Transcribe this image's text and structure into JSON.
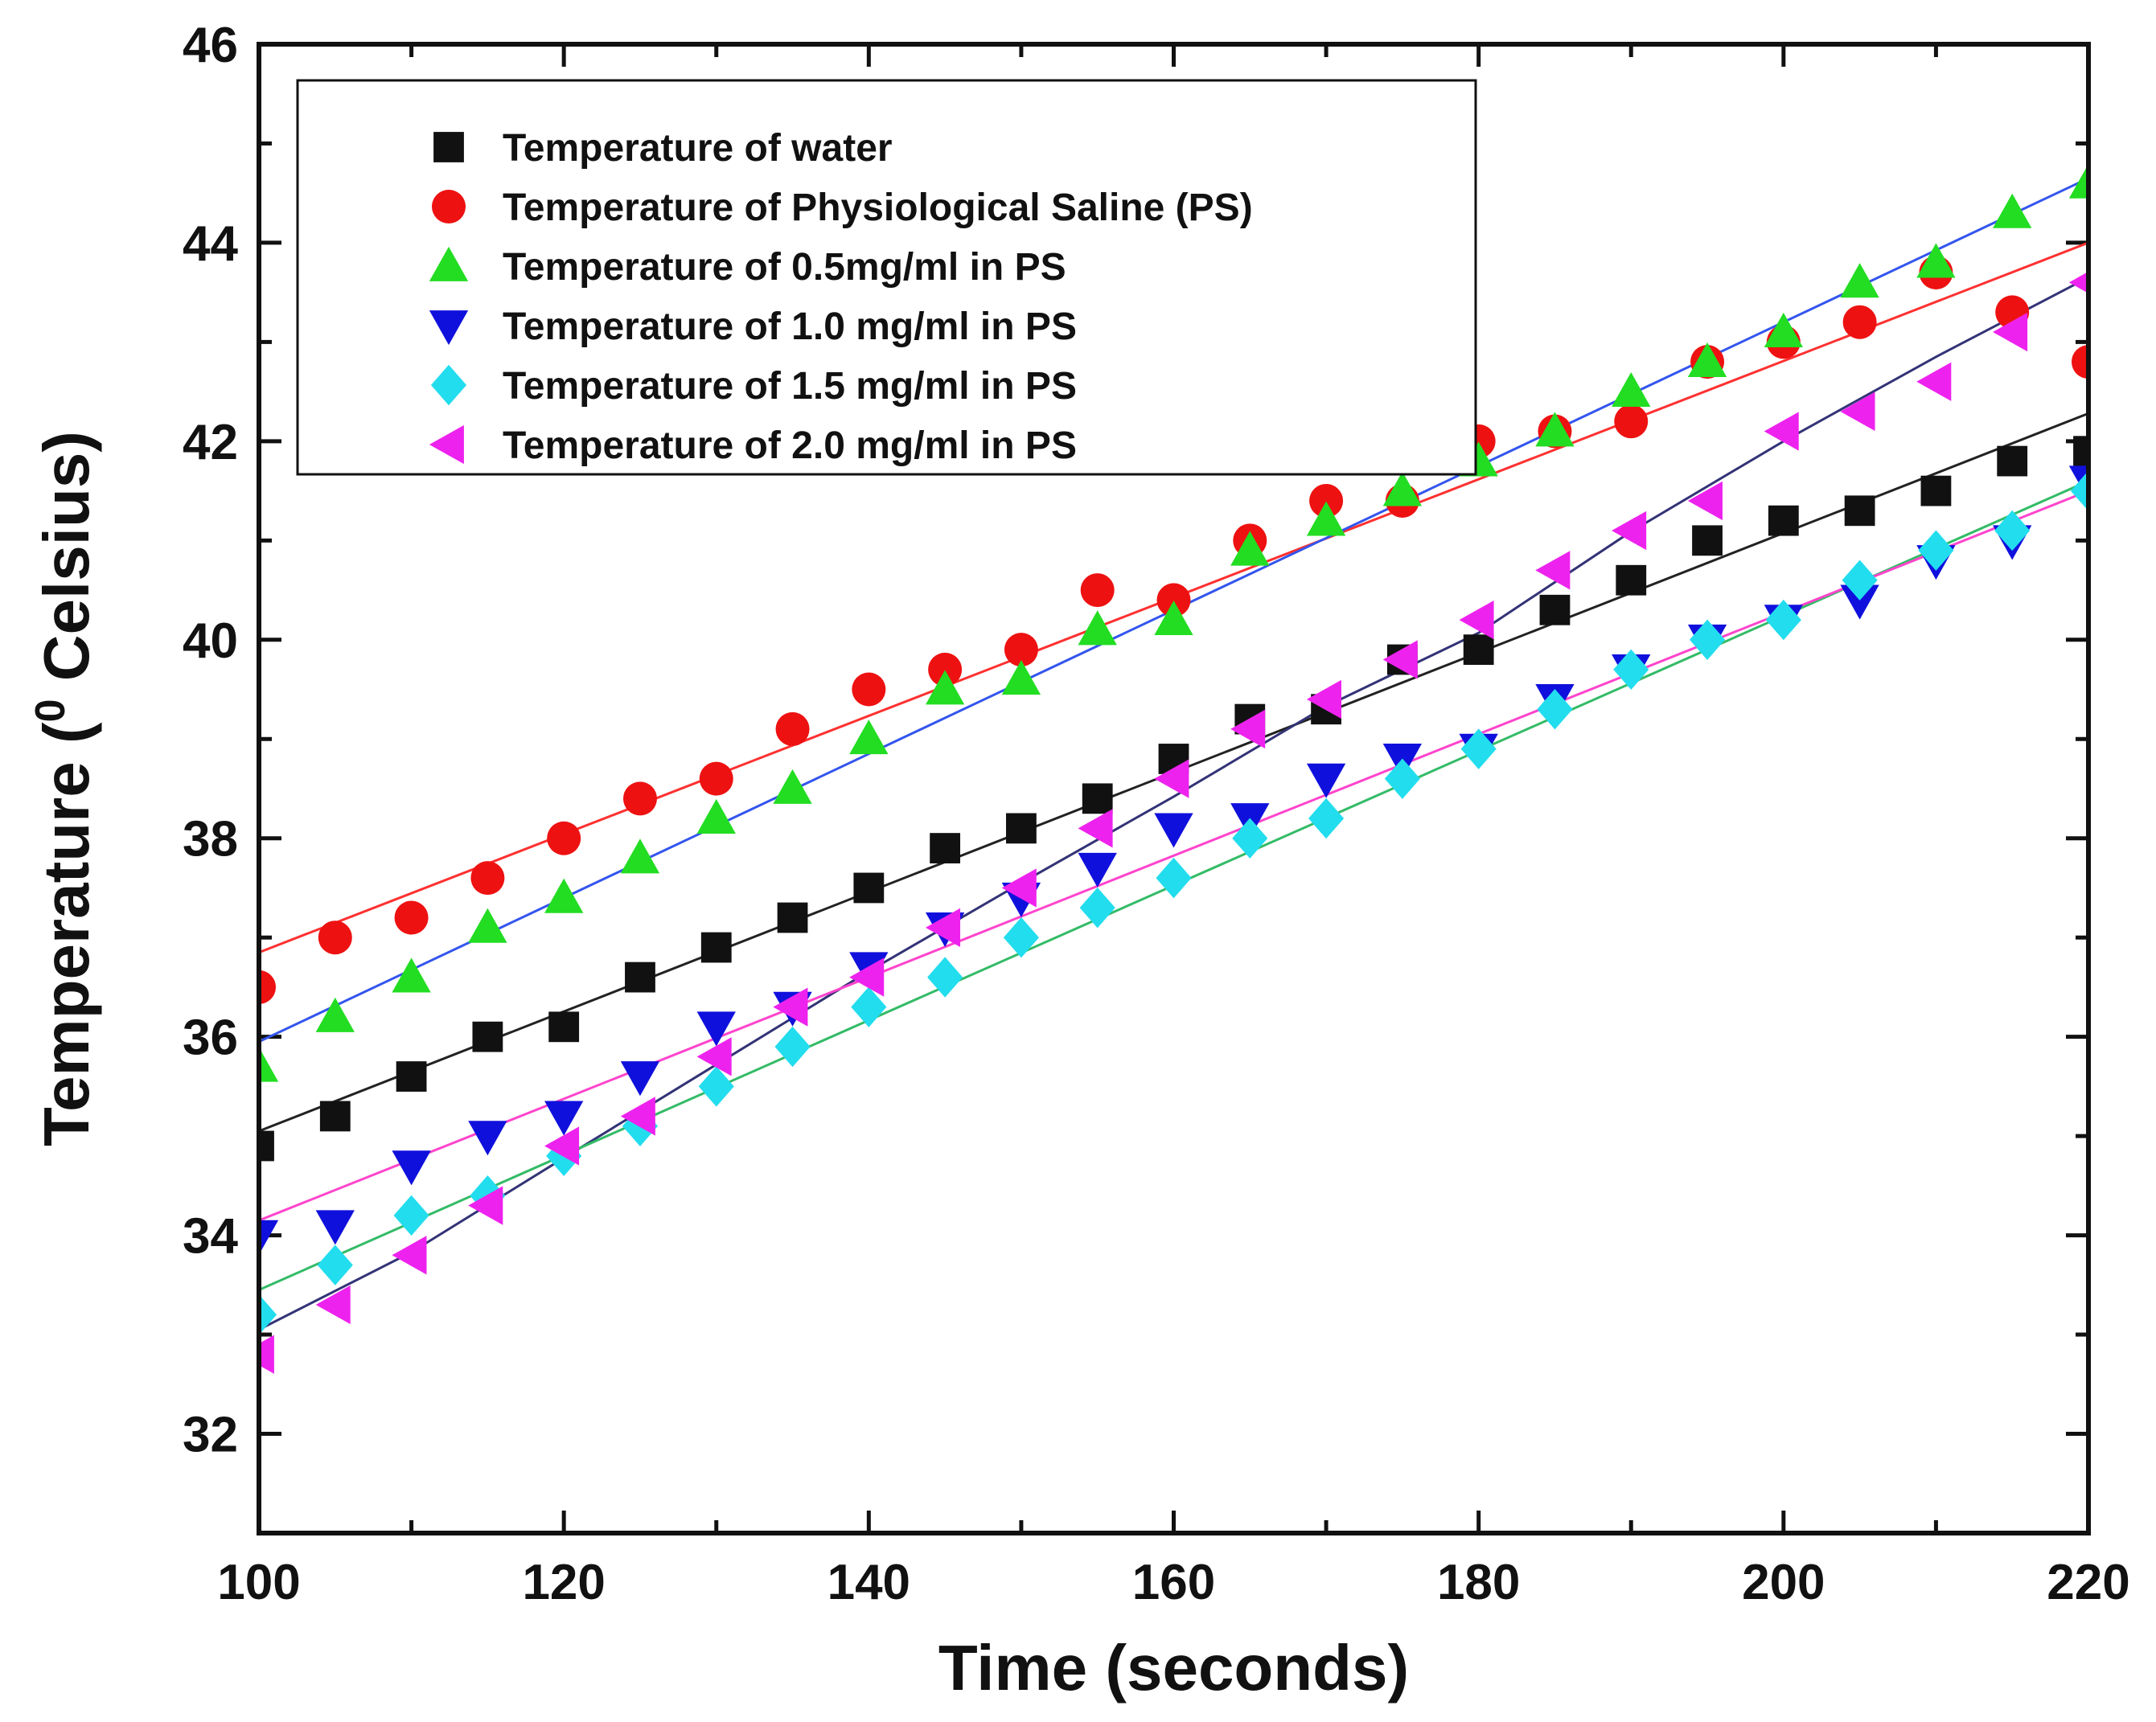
{
  "chart_data": {
    "type": "scatter",
    "xlabel": "Time (seconds)",
    "ylabel_parts": {
      "prefix": "Temperature (",
      "superscript": "0",
      "suffix": " Celsius)"
    },
    "xlim": [
      100,
      220
    ],
    "ylim": [
      31,
      46
    ],
    "xticks": [
      100,
      120,
      140,
      160,
      180,
      200,
      220
    ],
    "yticks": [
      32,
      34,
      36,
      38,
      40,
      42,
      44,
      46
    ],
    "legend_position": "top-left",
    "x": [
      100,
      105,
      110,
      115,
      120,
      125,
      130,
      135,
      140,
      145,
      150,
      155,
      160,
      165,
      170,
      175,
      180,
      185,
      190,
      195,
      200,
      205,
      210,
      215,
      220
    ],
    "series": [
      {
        "name": "Temperature of water",
        "marker": "square",
        "color": "#111111",
        "line_color": "#222222",
        "values": [
          34.9,
          35.2,
          35.6,
          36.0,
          36.1,
          36.6,
          36.9,
          37.2,
          37.5,
          37.9,
          38.1,
          38.4,
          38.8,
          39.2,
          39.3,
          39.8,
          39.9,
          40.3,
          40.6,
          41.0,
          41.2,
          41.3,
          41.5,
          41.8,
          41.9
        ],
        "fit": [
          [
            100,
            35.05
          ],
          [
            220,
            42.28
          ]
        ]
      },
      {
        "name": "Temperature of Physiological Saline (PS)",
        "marker": "circle",
        "color": "#ee1111",
        "line_color": "#ff3030",
        "values": [
          36.5,
          37.0,
          37.2,
          37.6,
          38.0,
          38.4,
          38.6,
          39.1,
          39.5,
          39.7,
          39.9,
          40.5,
          40.4,
          41.0,
          41.4,
          41.4,
          42.0,
          42.1,
          42.2,
          42.8,
          43.0,
          43.2,
          43.7,
          43.3,
          42.8
        ],
        "fit": [
          [
            100,
            36.85
          ],
          [
            220,
            44.0
          ]
        ]
      },
      {
        "name": "Temperature of 0.5mg/ml in PS",
        "marker": "triangle-up",
        "color": "#22dd22",
        "line_color": "#3355ee",
        "values": [
          35.7,
          36.2,
          36.6,
          37.1,
          37.4,
          37.8,
          38.2,
          38.5,
          39.0,
          39.5,
          39.6,
          40.1,
          40.2,
          40.9,
          41.2,
          41.5,
          41.8,
          42.1,
          42.5,
          42.8,
          43.1,
          43.6,
          43.8,
          44.3,
          44.6
        ],
        "fit": [
          [
            100,
            35.95
          ],
          [
            220,
            44.65
          ]
        ]
      },
      {
        "name": "Temperature of 1.0 mg/ml in PS",
        "marker": "triangle-down",
        "color": "#1010dd",
        "line_color": "#333377",
        "values": [
          34.0,
          34.1,
          34.7,
          35.0,
          35.2,
          35.6,
          36.1,
          36.3,
          36.7,
          37.1,
          37.4,
          37.7,
          38.1,
          38.2,
          38.6,
          38.8,
          38.9,
          39.4,
          39.7,
          40.0,
          40.2,
          40.4,
          40.8,
          41.0,
          41.6
        ],
        "fit": [
          [
            100,
            33.05
          ],
          [
            110,
            33.83
          ],
          [
            120,
            34.78
          ],
          [
            130,
            35.72
          ],
          [
            140,
            36.66
          ],
          [
            150,
            37.55
          ],
          [
            160,
            38.42
          ],
          [
            170,
            39.33
          ],
          [
            180,
            40.07
          ],
          [
            190,
            41.09
          ],
          [
            200,
            42.0
          ],
          [
            210,
            42.85
          ],
          [
            220,
            43.65
          ]
        ]
      },
      {
        "name": "Temperature of 1.5 mg/ml in PS",
        "marker": "diamond",
        "color": "#22ddee",
        "line_color": "#33bb66",
        "values": [
          33.2,
          33.7,
          34.2,
          34.4,
          34.8,
          35.1,
          35.5,
          35.9,
          36.3,
          36.6,
          37.0,
          37.3,
          37.6,
          38.0,
          38.2,
          38.6,
          38.9,
          39.3,
          39.7,
          40.0,
          40.2,
          40.6,
          40.9,
          41.1,
          41.5
        ],
        "fit": [
          [
            100,
            33.45
          ],
          [
            220,
            41.6
          ]
        ]
      },
      {
        "name": "Temperature of 2.0 mg/ml in PS",
        "marker": "triangle-left",
        "color": "#ee22ee",
        "line_color": "#ff44cc",
        "values": [
          32.8,
          33.3,
          33.8,
          34.3,
          34.9,
          35.2,
          35.8,
          36.3,
          36.6,
          37.1,
          37.5,
          38.1,
          38.6,
          39.1,
          39.4,
          39.8,
          40.2,
          40.7,
          41.1,
          41.4,
          42.1,
          42.3,
          42.6,
          43.1,
          43.6
        ],
        "fit": [
          [
            100,
            34.15
          ],
          [
            220,
            41.5
          ]
        ]
      }
    ]
  }
}
